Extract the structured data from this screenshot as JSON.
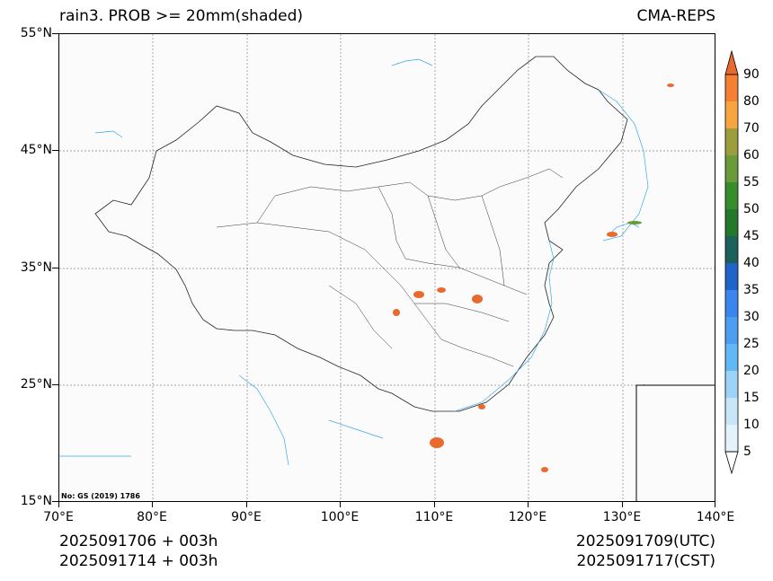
{
  "title": {
    "left": "rain3. PROB >= 20mm(shaded)",
    "right": "CMA-REPS"
  },
  "lat_labels": [
    "55°N",
    "45°N",
    "35°N",
    "25°N",
    "15°N"
  ],
  "lon_labels": [
    "70°E",
    "80°E",
    "90°E",
    "100°E",
    "110°E",
    "120°E",
    "130°E",
    "140°E"
  ],
  "colorbar": {
    "labels": [
      "90",
      "80",
      "70",
      "60",
      "55",
      "50",
      "45",
      "40",
      "35",
      "30",
      "25",
      "20",
      "15",
      "10",
      "5"
    ],
    "colors": [
      "#e96a2e",
      "#f57f33",
      "#f6a541",
      "#9c9e3d",
      "#6a9a3a",
      "#378d2e",
      "#23782a",
      "#1d5f5a",
      "#2063c9",
      "#2c73e4",
      "#3b86ee",
      "#4b9ef0",
      "#61b8f4",
      "#9cd3f6",
      "#c9e6f9",
      "#e4f2fc"
    ]
  },
  "footer": {
    "left_line1": "2025091706  +  003h",
    "left_line2": "2025091714  +  003h",
    "right_line1": "2025091709(UTC)",
    "right_line2": "2025091717(CST)"
  },
  "note": "No: GS (2019) 1786"
}
